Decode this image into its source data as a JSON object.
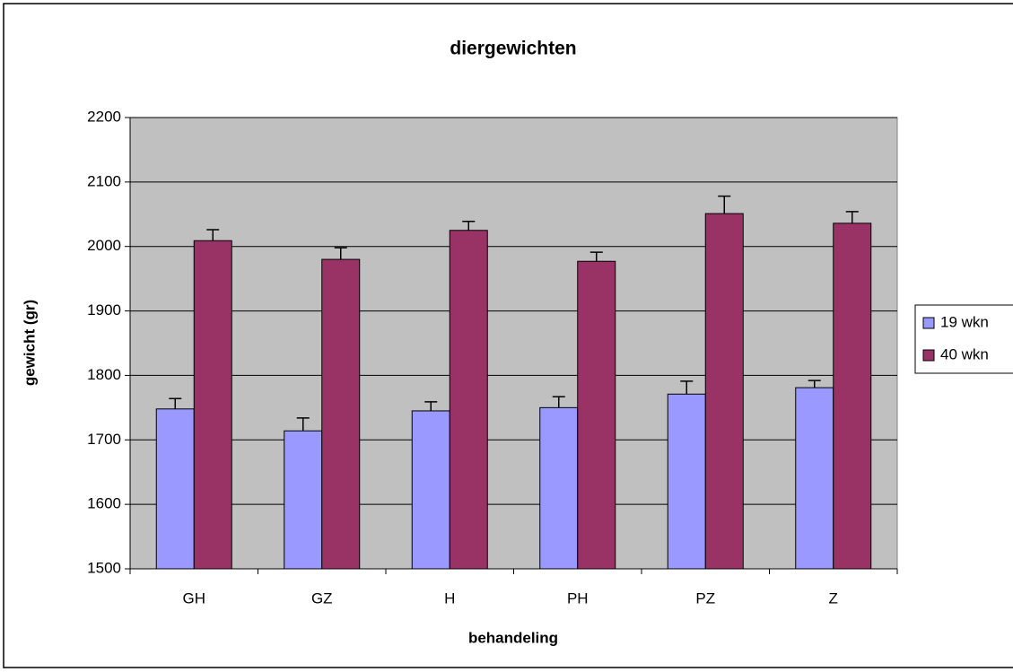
{
  "chart_data": {
    "type": "bar",
    "title": "diergewichten",
    "x_label": "behandeling",
    "y_label": "gewicht (gr)",
    "categories": [
      "GH",
      "GZ",
      "H",
      "PH",
      "PZ",
      "Z"
    ],
    "series": [
      {
        "name": "19 wkn",
        "color": "#9999ff",
        "values": [
          1748,
          1714,
          1745,
          1750,
          1771,
          1781
        ],
        "errors": [
          16,
          20,
          14,
          17,
          20,
          11
        ]
      },
      {
        "name": "40 wkn",
        "color": "#993366",
        "values": [
          2009,
          1980,
          2025,
          1977,
          2051,
          2036
        ],
        "errors": [
          17,
          18,
          14,
          14,
          27,
          18
        ]
      }
    ],
    "ylim": [
      1500,
      2200
    ],
    "yticks": [
      1500,
      1600,
      1700,
      1800,
      1900,
      2000,
      2100,
      2200
    ],
    "grid": true,
    "legend": "right",
    "plot_background": "#c0c0c0"
  }
}
